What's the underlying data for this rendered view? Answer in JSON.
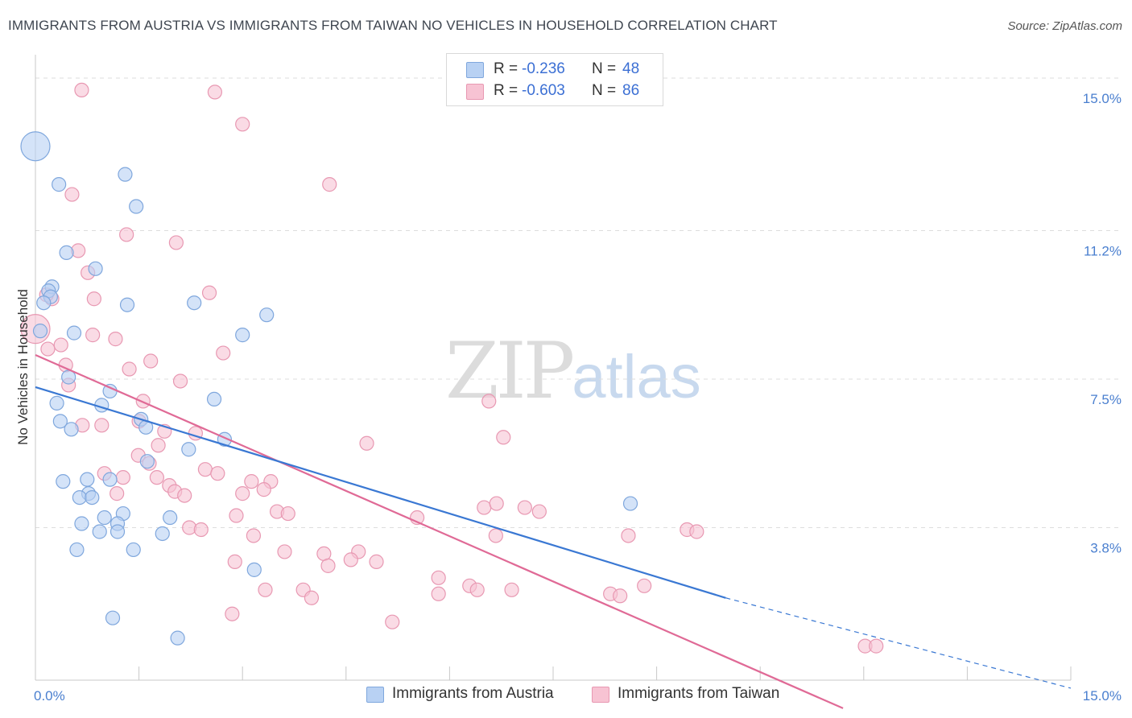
{
  "title": "IMMIGRANTS FROM AUSTRIA VS IMMIGRANTS FROM TAIWAN NO VEHICLES IN HOUSEHOLD CORRELATION CHART",
  "source": "Source: ZipAtlas.com",
  "watermark": {
    "zip": "ZIP",
    "atlas": "atlas"
  },
  "legend": {
    "austria": {
      "r_label": "R =",
      "r_value": "-0.236",
      "n_label": "N =",
      "n_value": "48"
    },
    "taiwan": {
      "r_label": "R =",
      "r_value": "-0.603",
      "n_label": "N =",
      "n_value": "86"
    }
  },
  "colors": {
    "austria_fill": "#b8d1f3",
    "austria_stroke": "#7fa7dd",
    "austria_line": "#3a78d3",
    "taiwan_fill": "#f7c3d3",
    "taiwan_stroke": "#e898b2",
    "taiwan_line": "#e06a96",
    "tick_text": "#4a7fcf",
    "grid": "#dddddd"
  },
  "chart_data": {
    "type": "scatter",
    "title": "IMMIGRANTS FROM AUSTRIA VS IMMIGRANTS FROM TAIWAN NO VEHICLES IN HOUSEHOLD CORRELATION CHART",
    "xlabel": "",
    "ylabel": "No Vehicles in Household",
    "xlim": [
      0,
      15
    ],
    "ylim": [
      0,
      15.4
    ],
    "x_tick_labels": [
      "0.0%",
      "15.0%"
    ],
    "y_ticks": [
      3.8,
      7.5,
      11.2,
      15.0
    ],
    "y_tick_labels": [
      "3.8%",
      "7.5%",
      "11.2%",
      "15.0%"
    ],
    "grid": "horizontal dashed",
    "legend_position": "top-center",
    "series": [
      {
        "name": "Immigrants from Austria",
        "trend": {
          "x": [
            0,
            10.0
          ],
          "y": [
            7.3,
            2.05
          ],
          "dashed_extension": {
            "x": [
              10.0,
              15.0
            ],
            "y": [
              2.05,
              -0.2
            ]
          }
        },
        "points": [
          {
            "x": 0.0,
            "y": 13.3,
            "big": true
          },
          {
            "x": 0.34,
            "y": 12.35
          },
          {
            "x": 1.3,
            "y": 12.6
          },
          {
            "x": 1.46,
            "y": 11.8
          },
          {
            "x": 0.45,
            "y": 10.65
          },
          {
            "x": 0.87,
            "y": 10.25
          },
          {
            "x": 0.24,
            "y": 9.8
          },
          {
            "x": 0.19,
            "y": 9.7
          },
          {
            "x": 0.22,
            "y": 9.55
          },
          {
            "x": 0.12,
            "y": 9.4
          },
          {
            "x": 1.33,
            "y": 9.35
          },
          {
            "x": 2.3,
            "y": 9.4
          },
          {
            "x": 3.35,
            "y": 9.1
          },
          {
            "x": 0.56,
            "y": 8.65
          },
          {
            "x": 0.07,
            "y": 8.7
          },
          {
            "x": 3.0,
            "y": 8.6
          },
          {
            "x": 0.48,
            "y": 7.55
          },
          {
            "x": 1.08,
            "y": 7.2
          },
          {
            "x": 0.31,
            "y": 6.9
          },
          {
            "x": 0.96,
            "y": 6.85
          },
          {
            "x": 1.53,
            "y": 6.5
          },
          {
            "x": 2.59,
            "y": 7.0
          },
          {
            "x": 0.36,
            "y": 6.45
          },
          {
            "x": 0.52,
            "y": 6.25
          },
          {
            "x": 1.6,
            "y": 6.3
          },
          {
            "x": 2.22,
            "y": 5.75
          },
          {
            "x": 2.74,
            "y": 6.0
          },
          {
            "x": 1.62,
            "y": 5.45
          },
          {
            "x": 0.4,
            "y": 4.95
          },
          {
            "x": 0.75,
            "y": 5.0
          },
          {
            "x": 1.08,
            "y": 5.0
          },
          {
            "x": 0.77,
            "y": 4.65
          },
          {
            "x": 0.64,
            "y": 4.55
          },
          {
            "x": 0.82,
            "y": 4.55
          },
          {
            "x": 8.62,
            "y": 4.4
          },
          {
            "x": 1.27,
            "y": 4.15
          },
          {
            "x": 1.0,
            "y": 4.05
          },
          {
            "x": 1.95,
            "y": 4.05
          },
          {
            "x": 0.67,
            "y": 3.9
          },
          {
            "x": 1.19,
            "y": 3.9
          },
          {
            "x": 0.93,
            "y": 3.7
          },
          {
            "x": 1.19,
            "y": 3.7
          },
          {
            "x": 1.84,
            "y": 3.65
          },
          {
            "x": 0.6,
            "y": 3.25
          },
          {
            "x": 1.42,
            "y": 3.25
          },
          {
            "x": 3.17,
            "y": 2.75
          },
          {
            "x": 1.12,
            "y": 1.55
          },
          {
            "x": 2.06,
            "y": 1.05
          }
        ]
      },
      {
        "name": "Immigrants from Taiwan",
        "trend": {
          "x": [
            0,
            11.7
          ],
          "y": [
            8.1,
            -0.7
          ]
        },
        "points": [
          {
            "x": 0.0,
            "y": 8.75,
            "big": true
          },
          {
            "x": 0.67,
            "y": 14.7
          },
          {
            "x": 2.6,
            "y": 14.65
          },
          {
            "x": 3.0,
            "y": 13.85
          },
          {
            "x": 4.26,
            "y": 12.35
          },
          {
            "x": 0.53,
            "y": 12.1
          },
          {
            "x": 1.32,
            "y": 11.1
          },
          {
            "x": 2.04,
            "y": 10.9
          },
          {
            "x": 0.62,
            "y": 10.7
          },
          {
            "x": 0.76,
            "y": 10.15
          },
          {
            "x": 0.24,
            "y": 9.5
          },
          {
            "x": 0.16,
            "y": 9.6
          },
          {
            "x": 0.85,
            "y": 9.5
          },
          {
            "x": 2.52,
            "y": 9.65
          },
          {
            "x": 0.83,
            "y": 8.6
          },
          {
            "x": 1.16,
            "y": 8.5
          },
          {
            "x": 0.18,
            "y": 8.25
          },
          {
            "x": 0.37,
            "y": 8.35
          },
          {
            "x": 2.72,
            "y": 8.15
          },
          {
            "x": 0.44,
            "y": 7.85
          },
          {
            "x": 1.36,
            "y": 7.75
          },
          {
            "x": 1.67,
            "y": 7.95
          },
          {
            "x": 2.1,
            "y": 7.45
          },
          {
            "x": 0.48,
            "y": 7.35
          },
          {
            "x": 1.56,
            "y": 6.95
          },
          {
            "x": 6.57,
            "y": 6.95
          },
          {
            "x": 1.5,
            "y": 6.45
          },
          {
            "x": 0.68,
            "y": 6.35
          },
          {
            "x": 0.96,
            "y": 6.35
          },
          {
            "x": 1.87,
            "y": 6.2
          },
          {
            "x": 2.32,
            "y": 6.15
          },
          {
            "x": 6.78,
            "y": 6.05
          },
          {
            "x": 1.78,
            "y": 5.85
          },
          {
            "x": 4.8,
            "y": 5.9
          },
          {
            "x": 1.49,
            "y": 5.6
          },
          {
            "x": 1.65,
            "y": 5.4
          },
          {
            "x": 1.0,
            "y": 5.15
          },
          {
            "x": 2.46,
            "y": 5.25
          },
          {
            "x": 2.64,
            "y": 5.15
          },
          {
            "x": 1.27,
            "y": 5.05
          },
          {
            "x": 1.76,
            "y": 5.05
          },
          {
            "x": 3.13,
            "y": 4.95
          },
          {
            "x": 3.41,
            "y": 4.95
          },
          {
            "x": 1.94,
            "y": 4.85
          },
          {
            "x": 3.31,
            "y": 4.75
          },
          {
            "x": 2.02,
            "y": 4.7
          },
          {
            "x": 2.16,
            "y": 4.6
          },
          {
            "x": 3.0,
            "y": 4.65
          },
          {
            "x": 1.18,
            "y": 4.65
          },
          {
            "x": 6.5,
            "y": 4.3
          },
          {
            "x": 6.68,
            "y": 4.4
          },
          {
            "x": 7.09,
            "y": 4.3
          },
          {
            "x": 7.3,
            "y": 4.2
          },
          {
            "x": 3.5,
            "y": 4.2
          },
          {
            "x": 3.66,
            "y": 4.15
          },
          {
            "x": 2.91,
            "y": 4.1
          },
          {
            "x": 5.53,
            "y": 4.05
          },
          {
            "x": 2.23,
            "y": 3.8
          },
          {
            "x": 2.4,
            "y": 3.75
          },
          {
            "x": 9.44,
            "y": 3.75
          },
          {
            "x": 9.58,
            "y": 3.7
          },
          {
            "x": 3.16,
            "y": 3.6
          },
          {
            "x": 6.67,
            "y": 3.6
          },
          {
            "x": 8.59,
            "y": 3.6
          },
          {
            "x": 4.18,
            "y": 3.15
          },
          {
            "x": 4.68,
            "y": 3.2
          },
          {
            "x": 3.61,
            "y": 3.2
          },
          {
            "x": 4.57,
            "y": 3.0
          },
          {
            "x": 2.89,
            "y": 2.95
          },
          {
            "x": 4.94,
            "y": 2.95
          },
          {
            "x": 4.24,
            "y": 2.85
          },
          {
            "x": 5.84,
            "y": 2.55
          },
          {
            "x": 6.29,
            "y": 2.35
          },
          {
            "x": 6.4,
            "y": 2.25
          },
          {
            "x": 3.33,
            "y": 2.25
          },
          {
            "x": 3.88,
            "y": 2.25
          },
          {
            "x": 6.9,
            "y": 2.25
          },
          {
            "x": 8.82,
            "y": 2.35
          },
          {
            "x": 5.84,
            "y": 2.15
          },
          {
            "x": 8.33,
            "y": 2.15
          },
          {
            "x": 8.47,
            "y": 2.1
          },
          {
            "x": 4.0,
            "y": 2.05
          },
          {
            "x": 2.85,
            "y": 1.65
          },
          {
            "x": 5.17,
            "y": 1.45
          },
          {
            "x": 12.02,
            "y": 0.85
          },
          {
            "x": 12.18,
            "y": 0.85
          }
        ]
      }
    ]
  },
  "bottom_legend": {
    "austria": "Immigrants from Austria",
    "taiwan": "Immigrants from Taiwan"
  }
}
